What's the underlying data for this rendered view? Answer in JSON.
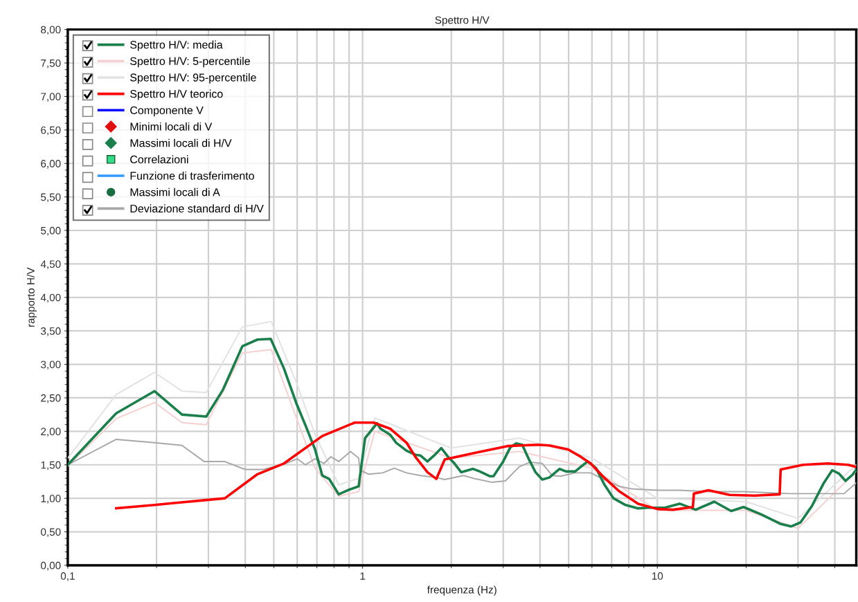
{
  "chart_data": {
    "type": "line",
    "title": "Spettro H/V",
    "xlabel": "frequenza (Hz)",
    "ylabel": "rapporto H/V",
    "log": "x",
    "grid": true,
    "legend": "top left",
    "xlim": [
      0.1,
      47.3
    ],
    "xticks": [
      {
        "value": 0.1,
        "label": "0,1"
      },
      1,
      10
    ],
    "ylim": [
      0,
      8
    ],
    "yticks": [
      {
        "value": 0,
        "label": "0,00"
      },
      {
        "value": 0.5,
        "label": "0,50"
      },
      {
        "value": 1,
        "label": "1,00"
      },
      {
        "value": 1.5,
        "label": "1,50"
      },
      {
        "value": 2,
        "label": "2,00"
      },
      {
        "value": 2.5,
        "label": "2,50"
      },
      {
        "value": 3,
        "label": "3,00"
      },
      {
        "value": 3.5,
        "label": "3,50"
      },
      {
        "value": 4,
        "label": "4,00"
      },
      {
        "value": 4.5,
        "label": "4,50"
      },
      {
        "value": 5,
        "label": "5,00"
      },
      {
        "value": 5.5,
        "label": "5,50"
      },
      {
        "value": 6,
        "label": "6,00"
      },
      {
        "value": 6.5,
        "label": "6,50"
      },
      {
        "value": 7,
        "label": "7,00"
      },
      {
        "value": 7.5,
        "label": "7,50"
      },
      {
        "value": 8,
        "label": "8,00"
      }
    ],
    "series": [
      {
        "name": "Spettro H/V: media",
        "color": "#1a7f4b",
        "x": [
          0.1,
          0.146,
          0.197,
          0.244,
          0.295,
          0.336,
          0.391,
          0.44,
          0.488,
          0.541,
          0.596,
          0.643,
          0.69,
          0.73,
          0.77,
          0.83,
          0.89,
          0.97,
          1.02,
          1.12,
          1.15,
          1.24,
          1.3,
          1.41,
          1.51,
          1.57,
          1.66,
          1.75,
          1.85,
          1.95,
          2.05,
          2.16,
          2.37,
          2.5,
          2.7,
          2.78,
          3.0,
          3.17,
          3.32,
          3.48,
          3.66,
          3.86,
          4.07,
          4.3,
          4.66,
          4.9,
          5.26,
          5.5,
          5.8,
          6.2,
          6.6,
          7.1,
          7.8,
          8.6,
          9.3,
          10.0,
          10.6,
          11.9,
          13.5,
          15.6,
          17.8,
          19.6,
          22.5,
          26.1,
          28.4,
          30.6,
          33.4,
          36.6,
          39.2,
          41.3,
          43.5,
          45.9,
          47.3
        ],
        "values": [
          1.5,
          2.27,
          2.6,
          2.25,
          2.22,
          2.62,
          3.27,
          3.37,
          3.38,
          2.94,
          2.42,
          2.07,
          1.73,
          1.34,
          1.29,
          1.06,
          1.12,
          1.18,
          1.9,
          2.12,
          2.04,
          1.95,
          1.83,
          1.71,
          1.65,
          1.64,
          1.55,
          1.64,
          1.75,
          1.62,
          1.52,
          1.39,
          1.44,
          1.4,
          1.33,
          1.33,
          1.55,
          1.76,
          1.82,
          1.8,
          1.59,
          1.39,
          1.28,
          1.31,
          1.44,
          1.4,
          1.4,
          1.47,
          1.55,
          1.45,
          1.21,
          1.0,
          0.9,
          0.85,
          0.86,
          0.86,
          0.86,
          0.92,
          0.83,
          0.95,
          0.81,
          0.87,
          0.76,
          0.62,
          0.58,
          0.64,
          0.88,
          1.22,
          1.42,
          1.37,
          1.26,
          1.35,
          1.43
        ]
      },
      {
        "name": "Spettro H/V: 5-percentile",
        "color": "#f6d0d0",
        "x": [
          0.1,
          0.146,
          0.197,
          0.244,
          0.295,
          0.391,
          0.49,
          0.6,
          0.69,
          0.83,
          0.97,
          1.1,
          2.0,
          3.4,
          6.0,
          10.0,
          20.0,
          30.0,
          47.3
        ],
        "values": [
          1.48,
          2.19,
          2.43,
          2.13,
          2.1,
          3.17,
          3.22,
          2.17,
          1.45,
          1.03,
          1.1,
          2.0,
          1.6,
          1.7,
          1.45,
          0.82,
          0.82,
          0.55,
          1.4
        ]
      },
      {
        "name": "Spettro H/V: 95-percentile",
        "color": "#e2e2e2",
        "x": [
          0.1,
          0.146,
          0.197,
          0.244,
          0.295,
          0.391,
          0.49,
          0.6,
          0.69,
          0.83,
          0.97,
          1.1,
          2.0,
          3.4,
          6.0,
          10.0,
          20.0,
          30.0,
          47.3
        ],
        "values": [
          1.6,
          2.55,
          2.88,
          2.6,
          2.58,
          3.56,
          3.64,
          2.7,
          1.95,
          1.2,
          1.3,
          2.2,
          1.75,
          1.9,
          1.6,
          1.0,
          0.95,
          0.7,
          1.5
        ]
      },
      {
        "name": "Spettro H/V teorico",
        "color": "#ff0000",
        "x": [
          0.146,
          0.197,
          0.243,
          0.341,
          0.44,
          0.541,
          0.73,
          0.94,
          1.09,
          1.24,
          1.41,
          1.51,
          1.66,
          1.78,
          1.9,
          2.42,
          3.1,
          3.94,
          4.3,
          4.98,
          5.5,
          5.94,
          6.6,
          7.4,
          8.6,
          10.0,
          11.3,
          13.2,
          13.3,
          14.9,
          17.6,
          21.4,
          26.0,
          26.2,
          31.2,
          37.8,
          44.4,
          47.3
        ],
        "values": [
          0.85,
          0.9,
          0.94,
          1.0,
          1.36,
          1.52,
          1.93,
          2.13,
          2.13,
          2.04,
          1.83,
          1.62,
          1.39,
          1.29,
          1.58,
          1.68,
          1.78,
          1.8,
          1.79,
          1.73,
          1.62,
          1.52,
          1.31,
          1.11,
          0.92,
          0.84,
          0.83,
          0.87,
          1.07,
          1.12,
          1.05,
          1.04,
          1.06,
          1.43,
          1.5,
          1.52,
          1.5,
          1.47
        ]
      },
      {
        "name": "Componente V",
        "color": "#0000ff"
      },
      {
        "name": "Minimi locali di V",
        "type": "scatter",
        "marker": "diamond",
        "color": "#e01010"
      },
      {
        "name": "Massimi locali di H/V",
        "type": "scatter",
        "marker": "diamond",
        "color": "#1a7f4b"
      },
      {
        "name": "Correlazioni",
        "type": "scatter",
        "marker": "square",
        "color": "#33dd88"
      },
      {
        "name": "Funzione di trasferimento",
        "color": "#3399ff"
      },
      {
        "name": "Massimi locali di A",
        "type": "scatter",
        "marker": "circle",
        "color": "#1a6f40"
      },
      {
        "name": "Deviazione standard di H/V",
        "color": "#a8a8a8",
        "x": [
          0.1,
          0.146,
          0.197,
          0.244,
          0.29,
          0.34,
          0.4,
          0.46,
          0.55,
          0.6,
          0.64,
          0.69,
          0.74,
          0.78,
          0.83,
          0.91,
          0.97,
          0.98,
          1.05,
          1.17,
          1.28,
          1.41,
          1.57,
          1.78,
          1.9,
          2.2,
          2.42,
          2.74,
          3.05,
          3.4,
          3.7,
          4.07,
          4.4,
          4.7,
          5.26,
          5.94,
          6.6,
          7.4,
          8.2,
          9.0,
          10.0,
          11.9,
          14.9,
          19.6,
          28.0,
          33.4,
          43.0,
          47.3
        ],
        "values": [
          1.5,
          1.88,
          1.83,
          1.79,
          1.55,
          1.55,
          1.43,
          1.43,
          1.52,
          1.59,
          1.5,
          1.59,
          1.52,
          1.62,
          1.55,
          1.7,
          1.6,
          1.42,
          1.36,
          1.38,
          1.45,
          1.38,
          1.34,
          1.31,
          1.28,
          1.34,
          1.29,
          1.24,
          1.26,
          1.47,
          1.54,
          1.52,
          1.34,
          1.33,
          1.38,
          1.38,
          1.28,
          1.18,
          1.14,
          1.13,
          1.12,
          1.12,
          1.1,
          1.1,
          1.07,
          1.07,
          1.07,
          1.23
        ]
      }
    ]
  }
}
